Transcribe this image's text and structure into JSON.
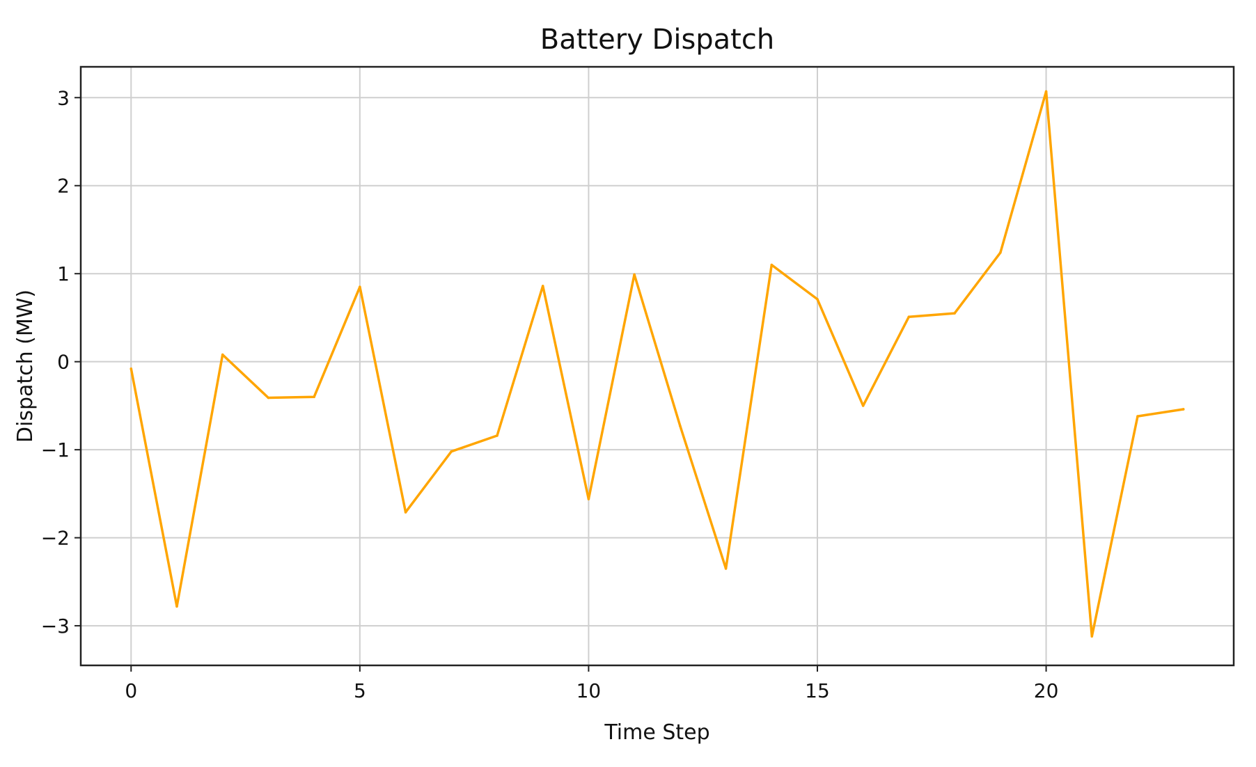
{
  "chart_data": {
    "type": "line",
    "title": "Battery Dispatch",
    "xlabel": "Time Step",
    "ylabel": "Dispatch (MW)",
    "xlim": [
      -1.1,
      24.1
    ],
    "ylim": [
      -3.45,
      3.35
    ],
    "xticks": [
      0,
      5,
      10,
      15,
      20
    ],
    "xtick_labels": [
      "0",
      "5",
      "10",
      "15",
      "20"
    ],
    "yticks": [
      3,
      2,
      1,
      0,
      -1,
      -2,
      -3
    ],
    "ytick_labels": [
      "3",
      "2",
      "1",
      "0",
      "−1",
      "−2",
      "−3"
    ],
    "grid": true,
    "legend": "none",
    "series": [
      {
        "color": "#ffa500",
        "x": [
          0,
          1,
          2,
          3,
          4,
          5,
          6,
          7,
          8,
          9,
          10,
          11,
          12,
          13,
          14,
          15,
          16,
          17,
          18,
          19,
          20,
          21,
          22,
          23
        ],
        "y": [
          -0.08,
          -2.78,
          0.08,
          -0.41,
          -0.4,
          0.85,
          -1.71,
          -1.02,
          -0.84,
          0.86,
          -1.56,
          0.99,
          -0.73,
          -2.35,
          1.1,
          0.71,
          -0.5,
          0.51,
          0.55,
          1.24,
          3.07,
          -3.12,
          -0.62,
          -0.54
        ]
      }
    ]
  }
}
